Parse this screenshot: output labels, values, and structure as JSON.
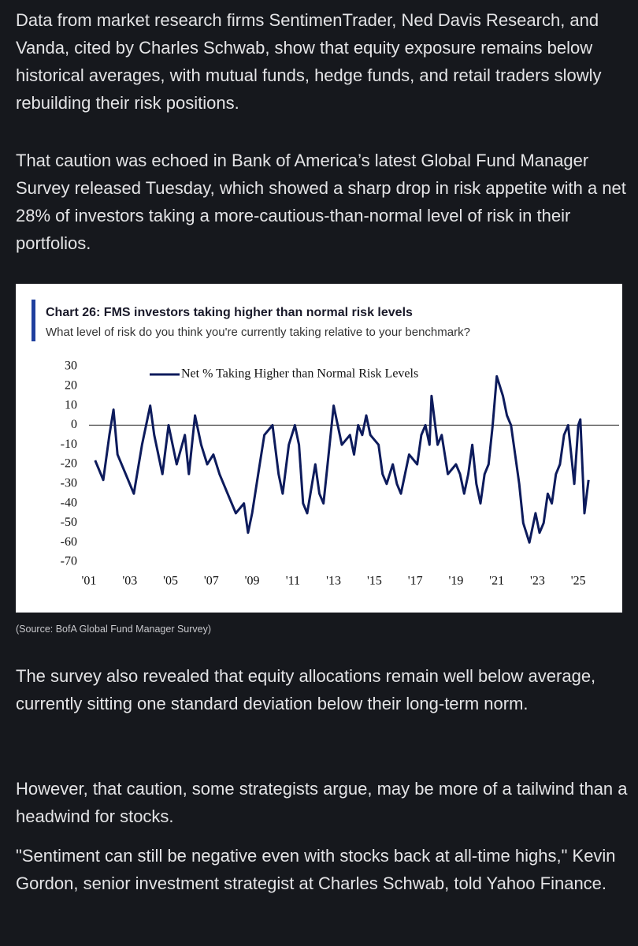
{
  "paragraphs_before": [
    "Data from market research firms SentimenTrader, Ned Davis Research, and Vanda, cited by Charles Schwab, show that equity exposure remains below historical averages, with mutual funds, hedge funds, and retail traders slowly rebuilding their risk positions.",
    "That caution was echoed in Bank of America’s latest Global Fund Manager Survey released Tuesday, which showed a sharp drop in risk appetite with a net 28% of investors taking a more-cautious-than-normal level of risk in their portfolios."
  ],
  "chart_data": {
    "type": "line",
    "title": "Chart 26: FMS investors taking higher than normal risk levels",
    "subtitle": "What level of risk do you think you're currently taking relative to your benchmark?",
    "x": [
      2001.3,
      2001.7,
      2002.0,
      2002.2,
      2002.4,
      2002.8,
      2003.2,
      2003.6,
      2004.0,
      2004.2,
      2004.6,
      2004.9,
      2005.3,
      2005.7,
      2005.9,
      2006.2,
      2006.5,
      2006.8,
      2007.1,
      2007.4,
      2007.8,
      2008.2,
      2008.6,
      2008.8,
      2009.0,
      2009.3,
      2009.6,
      2010.0,
      2010.3,
      2010.5,
      2010.8,
      2011.1,
      2011.3,
      2011.5,
      2011.7,
      2012.1,
      2012.3,
      2012.5,
      2012.7,
      2013.0,
      2013.2,
      2013.4,
      2013.8,
      2014.0,
      2014.2,
      2014.4,
      2014.6,
      2014.8,
      2015.2,
      2015.4,
      2015.6,
      2015.9,
      2016.1,
      2016.3,
      2016.5,
      2016.7,
      2017.1,
      2017.3,
      2017.5,
      2017.7,
      2017.8,
      2018.1,
      2018.3,
      2018.6,
      2019.0,
      2019.2,
      2019.4,
      2019.6,
      2019.8,
      2020.0,
      2020.2,
      2020.4,
      2020.6,
      2020.8,
      2021.0,
      2021.3,
      2021.5,
      2021.7,
      2021.9,
      2022.1,
      2022.3,
      2022.6,
      2022.9,
      2023.1,
      2023.3,
      2023.5,
      2023.7,
      2023.9,
      2024.1,
      2024.3,
      2024.5,
      2024.7,
      2024.8,
      2025.0,
      2025.1,
      2025.3,
      2025.5
    ],
    "series": [
      {
        "name": "Net % Taking Higher than Normal Risk Levels",
        "color": "#0d1b5c",
        "values": [
          -18,
          -28,
          -5,
          8,
          -15,
          -25,
          -35,
          -10,
          10,
          -5,
          -25,
          0,
          -20,
          -5,
          -25,
          5,
          -10,
          -20,
          -15,
          -25,
          -35,
          -45,
          -40,
          -55,
          -45,
          -25,
          -5,
          0,
          -25,
          -35,
          -10,
          0,
          -10,
          -40,
          -45,
          -20,
          -35,
          -40,
          -20,
          10,
          0,
          -10,
          -5,
          -15,
          0,
          -5,
          5,
          -5,
          -10,
          -25,
          -30,
          -20,
          -30,
          -35,
          -25,
          -15,
          -20,
          -5,
          0,
          -10,
          15,
          -10,
          -5,
          -25,
          -20,
          -25,
          -35,
          -25,
          -10,
          -30,
          -40,
          -25,
          -20,
          0,
          25,
          15,
          5,
          0,
          -15,
          -30,
          -50,
          -60,
          -45,
          -55,
          -50,
          -35,
          -40,
          -25,
          -20,
          -5,
          0,
          -20,
          -30,
          0,
          3,
          -45,
          -28
        ]
      }
    ],
    "xlim": [
      2001,
      2027
    ],
    "xticks": [
      {
        "value": 2001,
        "label": "'01"
      },
      {
        "value": 2003,
        "label": "'03"
      },
      {
        "value": 2005,
        "label": "'05"
      },
      {
        "value": 2007,
        "label": "'07"
      },
      {
        "value": 2009,
        "label": "'09"
      },
      {
        "value": 2011,
        "label": "'11"
      },
      {
        "value": 2013,
        "label": "'13"
      },
      {
        "value": 2015,
        "label": "'15"
      },
      {
        "value": 2017,
        "label": "'17"
      },
      {
        "value": 2019,
        "label": "'19"
      },
      {
        "value": 2021,
        "label": "'21"
      },
      {
        "value": 2023,
        "label": "'23"
      },
      {
        "value": 2025,
        "label": "'25"
      }
    ],
    "ylim": [
      -70,
      30
    ],
    "yticks": [
      30,
      20,
      10,
      0,
      -10,
      -20,
      -30,
      -40,
      -50,
      -60,
      -70
    ],
    "hlines": [
      0
    ],
    "grid": false
  },
  "source": "(Source: BofA Global Fund Manager Survey)",
  "paragraphs_after": [
    "The survey also revealed that equity allocations remain well below average, currently sitting one standard deviation below their long-term norm.",
    "However, that caution, some strategists argue, may be more of a tailwind than a headwind for stocks.",
    "\"Sentiment can still be negative even with stocks back at all-time highs,\" Kevin Gordon, senior investment strategist at Charles Schwab, told Yahoo Finance."
  ]
}
